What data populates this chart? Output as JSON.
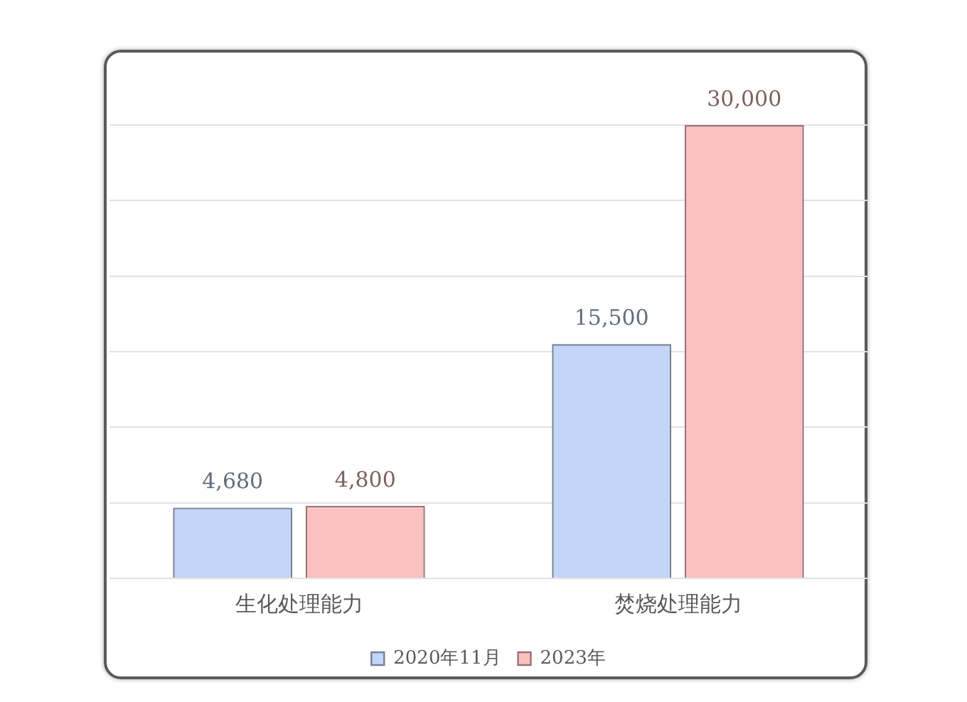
{
  "chart_data": {
    "type": "bar",
    "categories": [
      "生化处理能力",
      "焚烧处理能力"
    ],
    "series": [
      {
        "name": "2020年11月",
        "color": "#c3d6f8",
        "values": [
          4680,
          15500
        ],
        "value_labels": [
          "4,680",
          "15,500"
        ]
      },
      {
        "name": "2023年",
        "color": "#fbc0c0",
        "values": [
          4800,
          30000
        ],
        "value_labels": [
          "4,800",
          "30,000"
        ]
      }
    ],
    "ylim": [
      0,
      30000
    ],
    "grid": "y",
    "legend": "bottom",
    "tick_labels": "x"
  }
}
